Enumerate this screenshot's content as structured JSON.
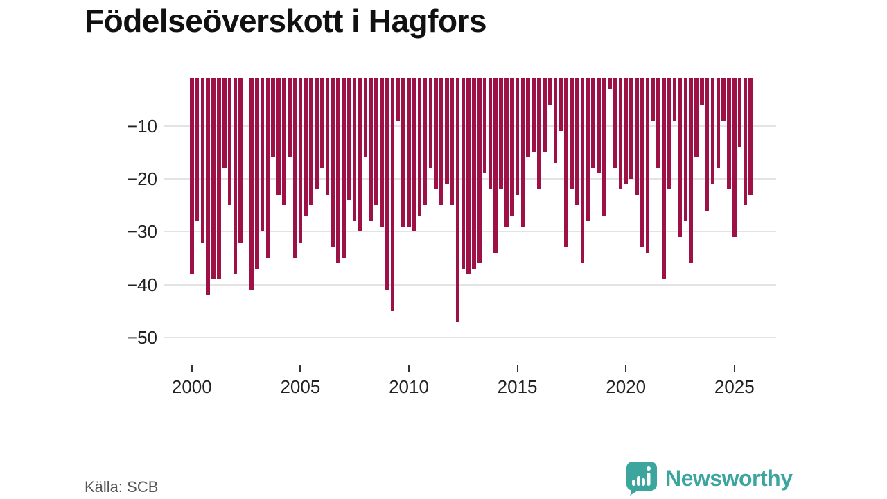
{
  "title": "Födelseöverskott i Hagfors",
  "source": "Källa: SCB",
  "logo": {
    "text": "Newsworthy"
  },
  "colors": {
    "bar": "#9e1146",
    "accent_teal": "#3ca59e",
    "gridline": "#e3e3e3",
    "axis_text": "#222222",
    "source_text": "#565656"
  },
  "chart_data": {
    "type": "bar",
    "title": "Födelseöverskott i Hagfors",
    "frequency": "quarterly",
    "start": "2000 Q1",
    "end": "2025 Q4",
    "ylim": [
      -55,
      -1
    ],
    "grid": true,
    "legend": false,
    "y_ticks": [
      -10,
      -20,
      -30,
      -40,
      -50
    ],
    "y_tick_labels": [
      "−10",
      "−20",
      "−30",
      "−40",
      "−50"
    ],
    "x_tick_years": [
      2000,
      2005,
      2010,
      2015,
      2020,
      2025
    ],
    "x_tick_labels": [
      "2000",
      "2005",
      "2010",
      "2015",
      "2020",
      "2025"
    ],
    "values": [
      -38,
      -28,
      -32,
      -42,
      -39,
      -39,
      -18,
      -25,
      -38,
      -32,
      -1,
      -41,
      -37,
      -30,
      -35,
      -16,
      -23,
      -25,
      -16,
      -35,
      -32,
      -27,
      -25,
      -22,
      -18,
      -23,
      -33,
      -36,
      -35,
      -24,
      -28,
      -30,
      -16,
      -28,
      -25,
      -29,
      -41,
      -45,
      -9,
      -29,
      -29,
      -30,
      -27,
      -25,
      -18,
      -22,
      -25,
      -21,
      -25,
      -47,
      -37,
      -38,
      -37,
      -36,
      -19,
      -22,
      -34,
      -22,
      -29,
      -27,
      -23,
      -29,
      -16,
      -15,
      -22,
      -15,
      -6,
      -17,
      -11,
      -33,
      -22,
      -25,
      -36,
      -28,
      -18,
      -19,
      -27,
      -3,
      -18,
      -22,
      -21,
      -20,
      -23,
      -33,
      -34,
      -9,
      -18,
      -39,
      -22,
      -9,
      -31,
      -28,
      -36,
      -16,
      -6,
      -26,
      -21,
      -18,
      -9,
      -22,
      -31,
      -14,
      -25,
      -23
    ]
  }
}
